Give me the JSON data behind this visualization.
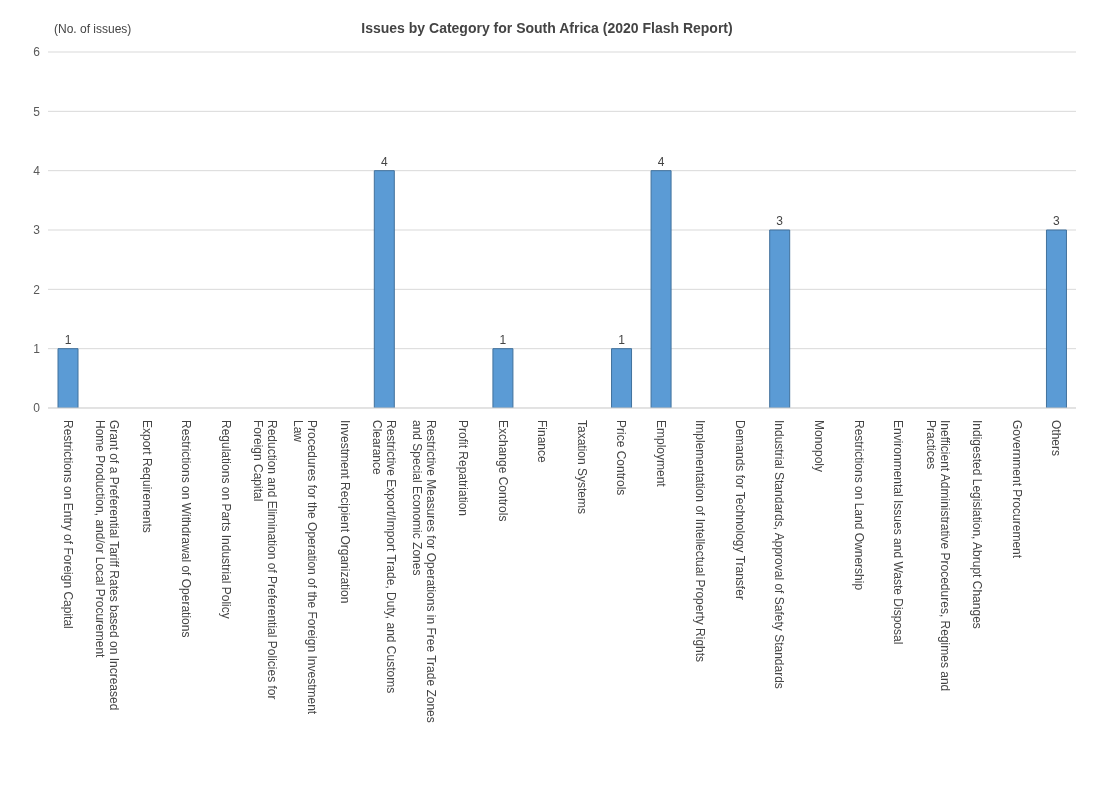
{
  "chart_data": {
    "type": "bar",
    "title": "Issues by Category for South Africa (2020 Flash Report)",
    "ylabel": "(No. of issues)",
    "categories": [
      "Restrictions on Entry of Foreign Capital",
      "Grant of a Preferential Tariff Rates based on Increased Home Production, and/or Local Procurement",
      "Export Requirements",
      "Restrictions on Withdrawal of Operations",
      "Regulations on Parts Industrial Policy",
      "Reduction and Elimination of Preferential Policies for Foreign Capital",
      "Procedures for the Operation of the Foreign Investment Law",
      "Investment Recipient Organization",
      "Restrictive Export/Import Trade, Duty, and Customs Clearance",
      "Restrictive Measures for Operations in Free Trade Zones and Special Economic Zones",
      "Profit Repatriation",
      "Exchange Controls",
      "Finance",
      "Taxation Systems",
      "Price Controls",
      "Employment",
      "Implementation of Intellectual Property Rights",
      "Demands for Technology Transfer",
      "Industrial Standards, Approval of Safety Standards",
      "Monopoly",
      "Restrictions on Land Ownership",
      "Environmental Issues and Waste Disposal",
      "Inefficient Administrative Procedures, Regimes and Practices",
      "Indigested Legislation, Abrupt Changes",
      "Government Procurement",
      "Others"
    ],
    "values": [
      1,
      0,
      0,
      0,
      0,
      0,
      0,
      0,
      4,
      0,
      0,
      1,
      0,
      0,
      1,
      4,
      0,
      0,
      3,
      0,
      0,
      0,
      0,
      0,
      0,
      3
    ],
    "value_labels": [
      "1",
      null,
      null,
      null,
      null,
      null,
      null,
      null,
      "4",
      null,
      null,
      "1",
      null,
      null,
      "1",
      "4",
      null,
      null,
      "3",
      null,
      null,
      null,
      null,
      null,
      null,
      "3"
    ],
    "color": "#5b9bd5",
    "ylim": [
      0,
      6
    ],
    "yticks": [
      0,
      1,
      2,
      3,
      4,
      5,
      6
    ],
    "grid": "y"
  }
}
